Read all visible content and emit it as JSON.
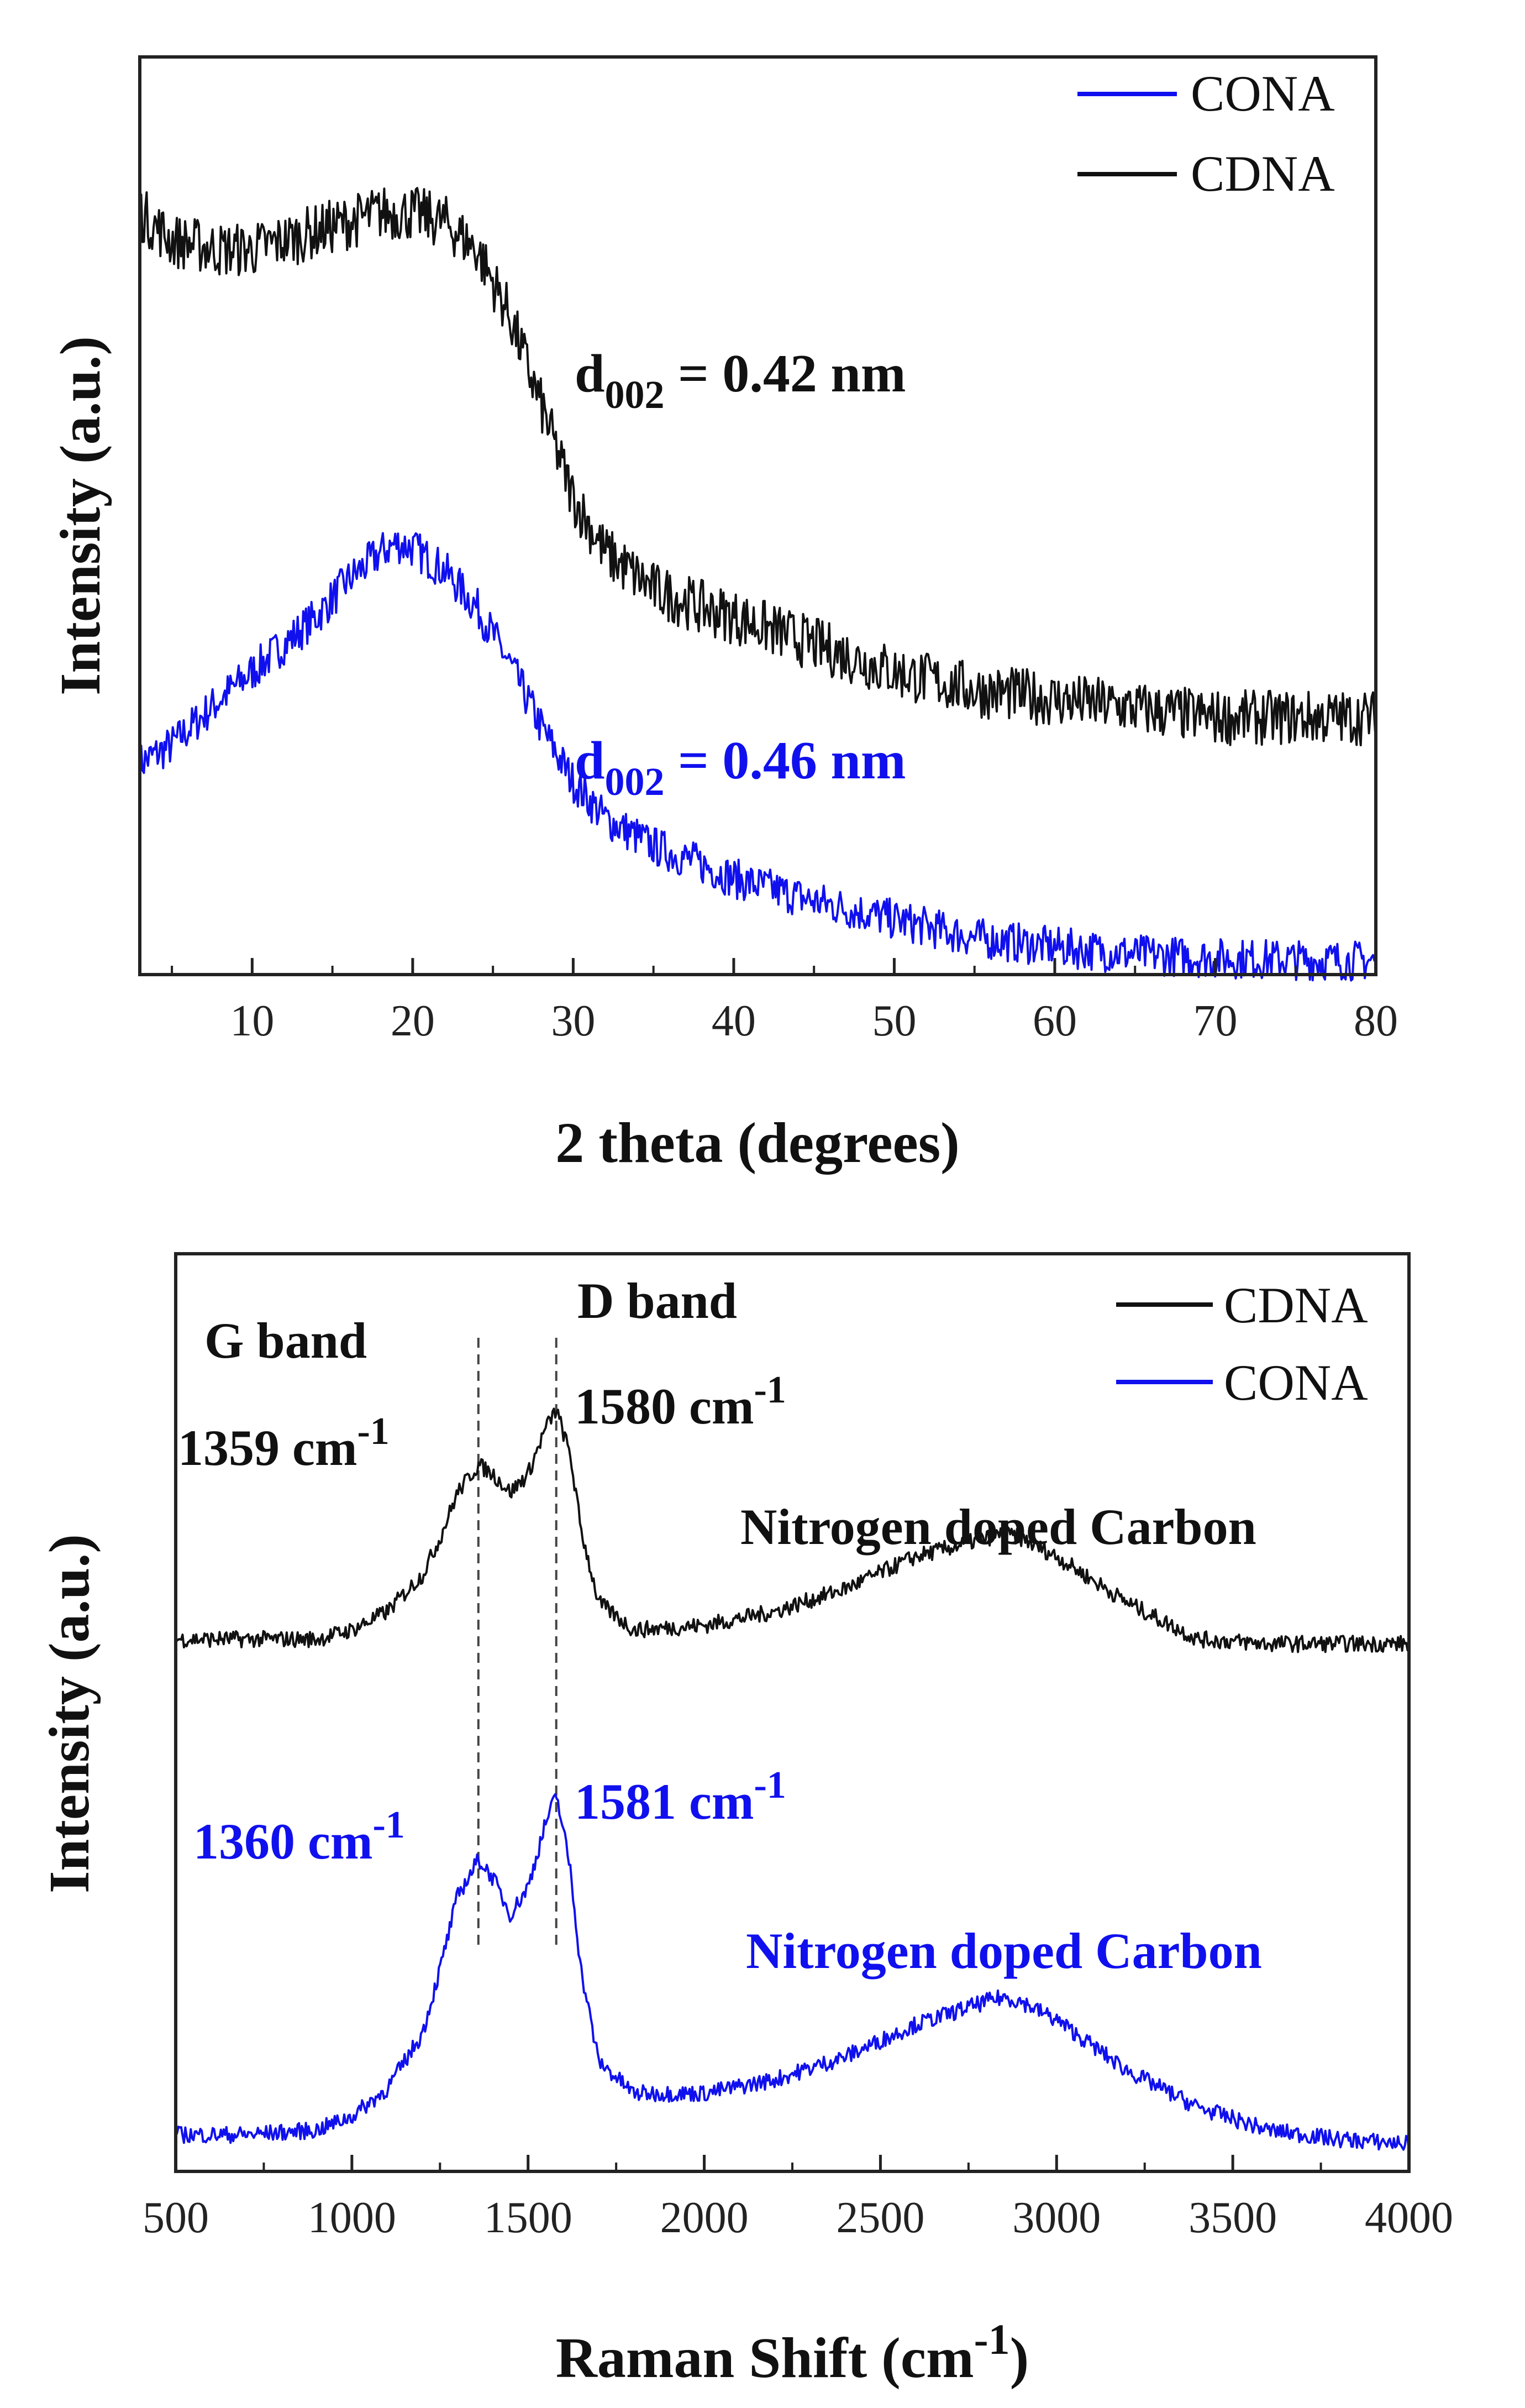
{
  "chart_data": [
    {
      "type": "line",
      "title": "",
      "xlabel": "2 theta (degrees)",
      "ylabel": "Intensity (a.u.)",
      "xlim": [
        3,
        80
      ],
      "ylim": [
        0,
        1
      ],
      "x_ticks": [
        10,
        20,
        30,
        40,
        50,
        60,
        70,
        80
      ],
      "legend_position": "top-right",
      "series": [
        {
          "name": "CONA",
          "color": "#1010ee",
          "x": [
            3,
            5,
            8,
            10,
            12,
            14,
            16,
            18,
            19,
            20,
            22,
            24,
            26,
            28,
            30,
            32,
            35,
            38,
            40,
            45,
            50,
            55,
            60,
            65,
            70,
            75,
            80
          ],
          "y": [
            0.23,
            0.25,
            0.3,
            0.33,
            0.36,
            0.39,
            0.43,
            0.46,
            0.47,
            0.465,
            0.44,
            0.4,
            0.34,
            0.27,
            0.21,
            0.17,
            0.14,
            0.12,
            0.105,
            0.08,
            0.06,
            0.04,
            0.03,
            0.022,
            0.018,
            0.016,
            0.015
          ]
        },
        {
          "name": "CDNA",
          "color": "#111111",
          "x": [
            3,
            5,
            8,
            10,
            12,
            14,
            16,
            18,
            20,
            22,
            24,
            26,
            28,
            30,
            32,
            35,
            38,
            40,
            45,
            50,
            55,
            60,
            65,
            70,
            75,
            80
          ],
          "y": [
            0.83,
            0.8,
            0.79,
            0.79,
            0.8,
            0.81,
            0.82,
            0.83,
            0.83,
            0.82,
            0.79,
            0.72,
            0.62,
            0.52,
            0.46,
            0.42,
            0.4,
            0.39,
            0.36,
            0.33,
            0.31,
            0.3,
            0.29,
            0.28,
            0.28,
            0.28
          ]
        }
      ],
      "annotations": [
        {
          "label": "d",
          "sub": "002",
          "value": " = 0.42 nm",
          "color": "#111111"
        },
        {
          "label": "d",
          "sub": "002",
          "value": " = 0.46 nm",
          "color": "#1010ee"
        }
      ]
    },
    {
      "type": "line",
      "title": "",
      "xlabel_main": "Raman Shift (cm",
      "xlabel_sup": "-1",
      "xlabel_close": ")",
      "ylabel": "Intensity (a.u.)",
      "xlim": [
        500,
        4000
      ],
      "ylim": [
        0,
        1
      ],
      "x_ticks": [
        500,
        1000,
        1500,
        2000,
        2500,
        3000,
        3500,
        4000
      ],
      "legend_position": "top-right",
      "reference_lines_x": [
        1359,
        1580
      ],
      "series": [
        {
          "name": "CDNA",
          "color": "#111111",
          "x": [
            500,
            700,
            900,
            1000,
            1100,
            1200,
            1250,
            1300,
            1359,
            1400,
            1450,
            1500,
            1550,
            1580,
            1620,
            1650,
            1700,
            1800,
            2000,
            2200,
            2400,
            2600,
            2800,
            2850,
            2900,
            3000,
            3200,
            3400,
            3600,
            3800,
            4000
          ],
          "y": [
            0.58,
            0.58,
            0.58,
            0.59,
            0.61,
            0.65,
            0.69,
            0.74,
            0.77,
            0.76,
            0.74,
            0.76,
            0.81,
            0.83,
            0.78,
            0.7,
            0.62,
            0.59,
            0.595,
            0.61,
            0.635,
            0.67,
            0.69,
            0.695,
            0.69,
            0.67,
            0.62,
            0.58,
            0.575,
            0.575,
            0.575
          ]
        },
        {
          "name": "CONA",
          "color": "#1010ee",
          "x": [
            500,
            700,
            900,
            1000,
            1100,
            1200,
            1250,
            1300,
            1360,
            1400,
            1450,
            1500,
            1550,
            1581,
            1620,
            1650,
            1700,
            1800,
            2000,
            2200,
            2400,
            2600,
            2800,
            2850,
            2900,
            3000,
            3200,
            3400,
            3600,
            3800,
            4000
          ],
          "y": [
            0.04,
            0.04,
            0.045,
            0.06,
            0.09,
            0.15,
            0.22,
            0.3,
            0.34,
            0.32,
            0.28,
            0.31,
            0.38,
            0.41,
            0.33,
            0.22,
            0.12,
            0.085,
            0.085,
            0.1,
            0.125,
            0.16,
            0.185,
            0.19,
            0.185,
            0.165,
            0.11,
            0.07,
            0.045,
            0.035,
            0.03
          ]
        }
      ],
      "annotations": {
        "g_band": "G band",
        "d_band": "D band",
        "cdna_peak1": "1359 cm",
        "cdna_peak2": "1580 cm",
        "cona_peak1": "1360 cm",
        "cona_peak2": "1581 cm",
        "unit_sup": "-1",
        "cdna_label": "Nitrogen doped Carbon",
        "cona_label": "Nitrogen doped Carbon"
      }
    }
  ]
}
